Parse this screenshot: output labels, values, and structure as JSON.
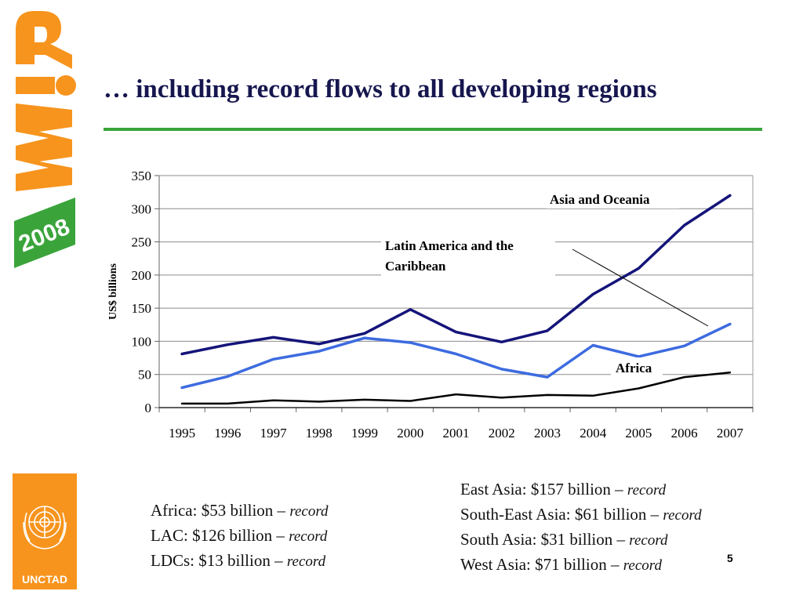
{
  "slide": {
    "title": "… including record flows to all developing regions",
    "page_number": "5"
  },
  "logos": {
    "top": {
      "icon": "wir-2008-logo-icon",
      "text_wir": "WiR",
      "text_year": "2008",
      "color": "#f7941d",
      "year_bg": "#3aa43b"
    },
    "bottom": {
      "icon": "un-emblem-icon",
      "text": "UNCTAD",
      "color": "#f7941d"
    }
  },
  "chart_data": {
    "type": "line",
    "x": [
      1995,
      1996,
      1997,
      1998,
      1999,
      2000,
      2001,
      2002,
      2003,
      2004,
      2005,
      2006,
      2007
    ],
    "ylabel": "US$ billions",
    "ylim": [
      0,
      350
    ],
    "yticks": [
      0,
      50,
      100,
      150,
      200,
      250,
      300,
      350
    ],
    "grid": true,
    "series": [
      {
        "name": "Asia and Oceania",
        "color": "#14147a",
        "width": 3.5,
        "values": [
          81,
          95,
          106,
          96,
          112,
          148,
          114,
          99,
          116,
          171,
          210,
          275,
          320
        ]
      },
      {
        "name": "Latin America and the Caribbean",
        "color": "#3d6be0",
        "width": 3.5,
        "values": [
          30,
          47,
          73,
          85,
          105,
          98,
          81,
          58,
          46,
          94,
          77,
          93,
          126
        ]
      },
      {
        "name": "Africa",
        "color": "#000000",
        "width": 2.5,
        "values": [
          6,
          6,
          11,
          9,
          12,
          10,
          20,
          15,
          19,
          18,
          29,
          46,
          53
        ]
      }
    ],
    "annotations": [
      {
        "label": "Asia and Oceania"
      },
      {
        "label": "Latin America and the",
        "label_line2": "Caribbean"
      },
      {
        "label": "Africa"
      }
    ]
  },
  "stats_left": [
    {
      "text": "Africa: $53 billion – ",
      "tag": "record"
    },
    {
      "text": "LAC: $126 billion – ",
      "tag": "record"
    },
    {
      "text": "LDCs: $13 billion – ",
      "tag": "record"
    }
  ],
  "stats_right": [
    {
      "text": "East Asia: $157 billion – ",
      "tag": "record"
    },
    {
      "text": "South-East Asia: $61 billion – ",
      "tag": "record"
    },
    {
      "text": "South Asia: $31 billion – ",
      "tag": "record"
    },
    {
      "text": "West Asia: $71 billion – ",
      "tag": "record"
    }
  ]
}
